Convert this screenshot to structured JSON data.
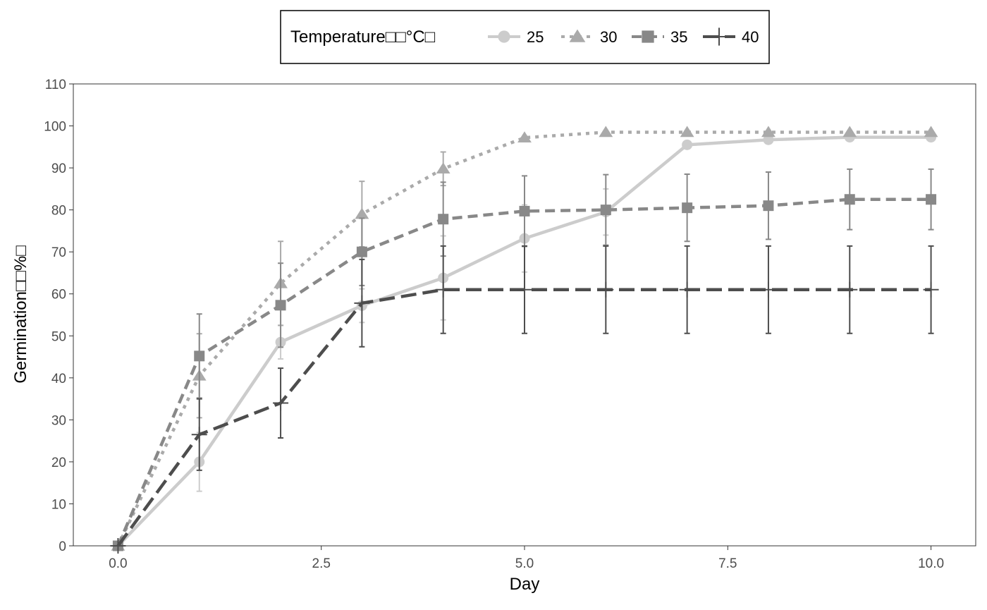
{
  "chart_data": {
    "type": "line",
    "xlabel": "Day",
    "ylabel": "Germination□□%□",
    "xlim": [
      -0.55,
      10.55
    ],
    "ylim": [
      0,
      110
    ],
    "xticks": [
      0.0,
      2.5,
      5.0,
      7.5,
      10.0
    ],
    "xtick_labels": [
      "0.0",
      "2.5",
      "5.0",
      "7.5",
      "10.0"
    ],
    "yticks": [
      0,
      10,
      20,
      30,
      40,
      50,
      60,
      70,
      80,
      90,
      100,
      110
    ],
    "ytick_labels": [
      "0",
      "10",
      "20",
      "30",
      "40",
      "50",
      "60",
      "70",
      "80",
      "90",
      "100",
      "110"
    ],
    "grid": false,
    "legend": {
      "title": "Temperature□□°C□",
      "placement": "top"
    },
    "series": [
      {
        "name": "25",
        "color": "#cccccc",
        "marker": "circle",
        "linestyle": "solid",
        "x": [
          0,
          1,
          2,
          3,
          4,
          5,
          6,
          7,
          8,
          9,
          10
        ],
        "y": [
          0,
          20,
          48.5,
          57.2,
          63.8,
          73.2,
          79.5,
          95.5,
          96.7,
          97.3,
          97.3
        ],
        "error": [
          0,
          7,
          4,
          4,
          10,
          8,
          5.5,
          0,
          0,
          0,
          0
        ]
      },
      {
        "name": "30",
        "color": "#aaaaaa",
        "marker": "triangle",
        "linestyle": "dotted",
        "x": [
          0,
          1,
          2,
          3,
          4,
          5,
          6,
          7,
          8,
          9,
          10
        ],
        "y": [
          0,
          40.5,
          62.5,
          79,
          89.8,
          97.2,
          98.5,
          98.5,
          98.5,
          98.5,
          98.5
        ],
        "error": [
          0,
          10,
          10,
          7.8,
          4,
          0,
          0,
          0,
          0,
          0,
          0
        ]
      },
      {
        "name": "35",
        "color": "#888888",
        "marker": "square",
        "linestyle": "dashed",
        "x": [
          0,
          1,
          2,
          3,
          4,
          5,
          6,
          7,
          8,
          9,
          10
        ],
        "y": [
          0,
          45.2,
          57.3,
          70,
          77.8,
          79.7,
          80,
          80.5,
          81,
          82.5,
          82.5
        ],
        "error": [
          0,
          10,
          10,
          8,
          8.8,
          8.4,
          8.4,
          8,
          8,
          7.2,
          7.2
        ]
      },
      {
        "name": "40",
        "color": "#4d4d4d",
        "marker": "plus",
        "linestyle": "longdash",
        "x": [
          0,
          1,
          2,
          3,
          4,
          5,
          6,
          7,
          8,
          9,
          10
        ],
        "y": [
          0,
          26.5,
          34,
          57.8,
          61,
          61,
          61,
          61,
          61,
          61,
          61
        ],
        "error": [
          0,
          8.5,
          8.3,
          10.4,
          10.4,
          10.4,
          10.4,
          10.4,
          10.4,
          10.4,
          10.4
        ]
      }
    ]
  }
}
